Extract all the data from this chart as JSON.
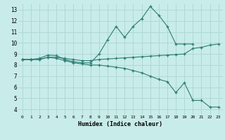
{
  "xlabel": "Humidex (Indice chaleur)",
  "bg_color": "#c8ecea",
  "grid_color": "#b0d8d4",
  "line_color": "#2d7d72",
  "xlim": [
    -0.5,
    23.5
  ],
  "ylim": [
    3.5,
    13.5
  ],
  "xticks": [
    0,
    1,
    2,
    3,
    4,
    5,
    6,
    7,
    8,
    9,
    10,
    11,
    12,
    13,
    14,
    15,
    16,
    17,
    18,
    19,
    20,
    21,
    22,
    23
  ],
  "yticks": [
    4,
    5,
    6,
    7,
    8,
    9,
    10,
    11,
    12,
    13
  ],
  "line1_x": [
    0,
    1,
    2,
    3,
    4,
    5,
    6,
    7,
    8,
    9,
    10,
    11,
    12,
    13,
    14,
    15,
    16,
    17,
    18,
    19,
    20
  ],
  "line1_y": [
    8.5,
    8.5,
    8.6,
    8.9,
    8.85,
    8.5,
    8.3,
    8.2,
    8.2,
    9.0,
    10.3,
    11.5,
    10.5,
    11.5,
    12.2,
    13.3,
    12.5,
    11.5,
    9.9,
    9.9,
    9.9
  ],
  "line2_x": [
    0,
    1,
    2,
    3,
    4,
    5,
    6,
    7,
    8,
    9,
    10,
    11,
    12,
    13,
    14,
    15,
    16,
    17,
    18,
    19,
    20,
    21,
    22,
    23
  ],
  "line2_y": [
    8.5,
    8.5,
    8.5,
    8.7,
    8.7,
    8.6,
    8.5,
    8.4,
    8.4,
    8.5,
    8.55,
    8.6,
    8.65,
    8.7,
    8.75,
    8.8,
    8.85,
    8.9,
    8.95,
    9.0,
    9.5,
    9.6,
    9.8,
    9.9
  ],
  "line3_x": [
    0,
    1,
    2,
    3,
    4,
    5,
    6,
    7,
    8,
    9,
    10,
    11,
    12,
    13,
    14,
    15,
    16,
    17,
    18,
    19,
    20,
    21,
    22,
    23
  ],
  "line3_y": [
    8.5,
    8.5,
    8.5,
    8.7,
    8.6,
    8.4,
    8.2,
    8.1,
    8.0,
    8.0,
    7.9,
    7.8,
    7.7,
    7.5,
    7.3,
    7.0,
    6.7,
    6.5,
    5.5,
    6.4,
    4.8,
    4.8,
    4.2,
    4.2
  ]
}
